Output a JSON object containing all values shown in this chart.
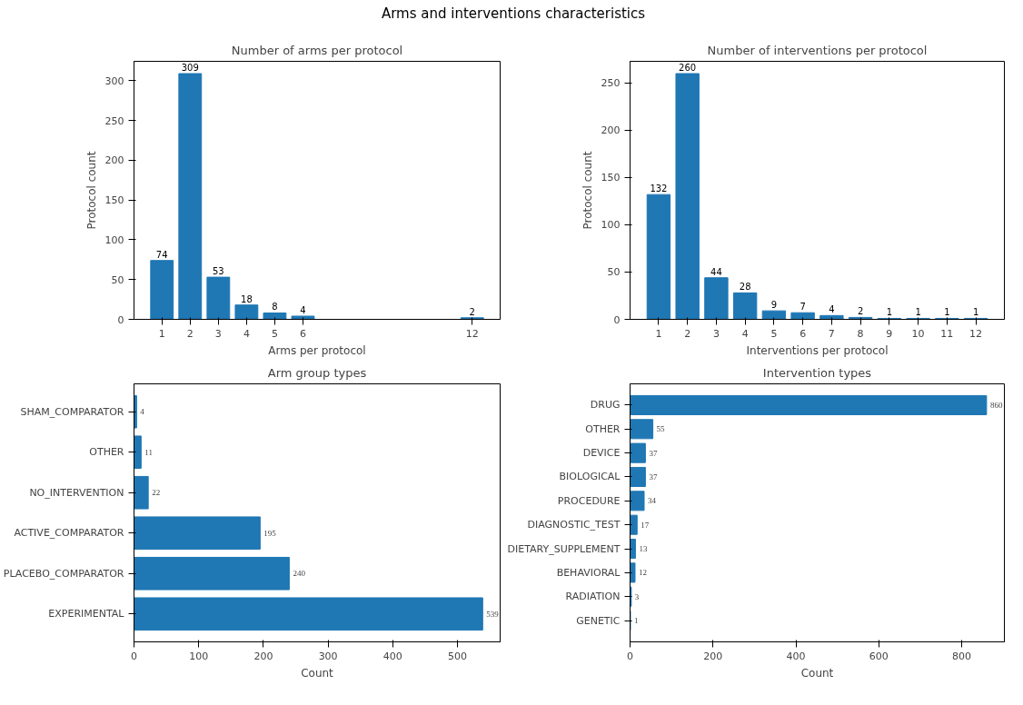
{
  "chart_data": [
    {
      "type": "other",
      "title": "Arms and interventions characteristics"
    },
    {
      "type": "bar",
      "title": "Number of arms per protocol",
      "xlabel": "Arms per protocol",
      "ylabel": "Protocol count",
      "x": [
        1,
        2,
        3,
        4,
        5,
        6,
        12
      ],
      "values": [
        74,
        309,
        53,
        18,
        8,
        4,
        2
      ],
      "color": "#1f77b4",
      "xlim": [
        0.01,
        12.99
      ],
      "xticks": [
        1,
        2,
        3,
        4,
        5,
        6,
        12
      ],
      "ylim": [
        0,
        324.45
      ],
      "yticks": [
        0,
        50,
        100,
        150,
        200,
        250,
        300
      ],
      "data_labels": true
    },
    {
      "type": "bar",
      "title": "Number of interventions per protocol",
      "xlabel": "Interventions per protocol",
      "ylabel": "Protocol count",
      "x": [
        1,
        2,
        3,
        4,
        5,
        6,
        7,
        8,
        9,
        10,
        11,
        12
      ],
      "values": [
        132,
        260,
        44,
        28,
        9,
        7,
        4,
        2,
        1,
        1,
        1,
        1
      ],
      "color": "#1f77b4",
      "xlim": [
        0.01,
        12.99
      ],
      "xticks": [
        1,
        2,
        3,
        4,
        5,
        6,
        7,
        8,
        9,
        10,
        11,
        12
      ],
      "ylim": [
        0,
        273
      ],
      "yticks": [
        0,
        50,
        100,
        150,
        200,
        250
      ],
      "data_labels": true
    },
    {
      "type": "bar",
      "orientation": "horizontal",
      "title": "Arm group types",
      "xlabel": "Count",
      "categories": [
        "SHAM_COMPARATOR",
        "OTHER",
        "NO_INTERVENTION",
        "ACTIVE_COMPARATOR",
        "PLACEBO_COMPARATOR",
        "EXPERIMENTAL"
      ],
      "values": [
        4,
        11,
        22,
        195,
        240,
        539
      ],
      "color": "#1f77b4",
      "xlim": [
        0,
        565.95
      ],
      "xticks": [
        0,
        100,
        200,
        300,
        400,
        500
      ],
      "data_labels": true
    },
    {
      "type": "bar",
      "orientation": "horizontal",
      "title": "Intervention types",
      "xlabel": "Count",
      "categories": [
        "DRUG",
        "OTHER",
        "DEVICE",
        "BIOLOGICAL",
        "PROCEDURE",
        "DIAGNOSTIC_TEST",
        "DIETARY_SUPPLEMENT",
        "BEHAVIORAL",
        "RADIATION",
        "GENETIC"
      ],
      "values": [
        860,
        55,
        37,
        37,
        34,
        17,
        13,
        12,
        3,
        1
      ],
      "color": "#1f77b4",
      "xlim": [
        0,
        903
      ],
      "xticks": [
        0,
        200,
        400,
        600,
        800
      ],
      "data_labels": true
    }
  ]
}
